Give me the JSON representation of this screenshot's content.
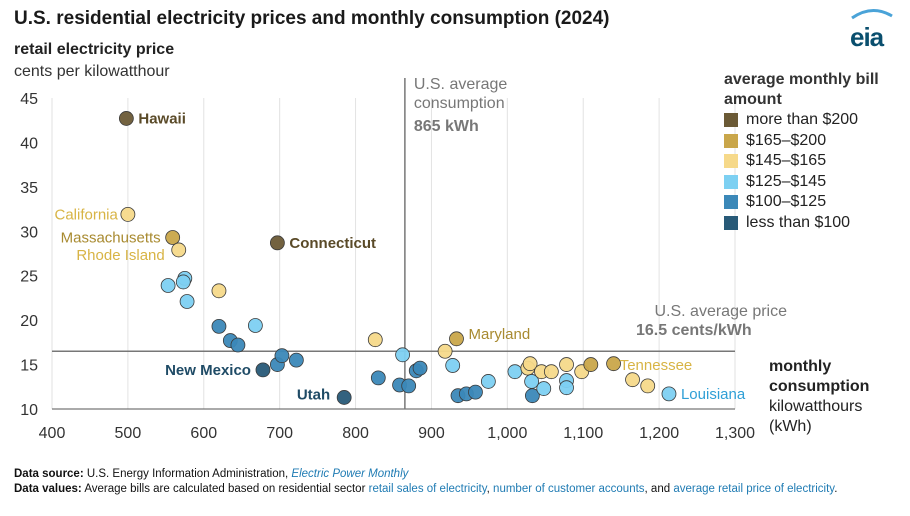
{
  "title": "U.S. residential electricity prices and monthly consumption (2024)",
  "logo": "eia",
  "y_axis_title": "retail electricity price",
  "y_axis_unit": "cents per kilowatthour",
  "x_axis_title": "monthly consumption",
  "x_axis_unit": "kilowatthours (kWh)",
  "legend": {
    "title": "average monthly bill amount",
    "items": [
      {
        "label": "more than $200",
        "color": "#6b5a36"
      },
      {
        "label": "$165–$200",
        "color": "#c9a64a"
      },
      {
        "label": "$145–$165",
        "color": "#f6d98a"
      },
      {
        "label": "$125–$145",
        "color": "#7dd0f2"
      },
      {
        "label": "$100–$125",
        "color": "#3b88b8"
      },
      {
        "label": "less than $100",
        "color": "#285a78"
      }
    ]
  },
  "annotations": {
    "avg_consumption_label": "U.S. average consumption",
    "avg_consumption_value": "865 kWh",
    "avg_price_label": "U.S. average price",
    "avg_price_value": "16.5 cents/kWh"
  },
  "footer": {
    "source_label": "Data source:",
    "source_text": "U.S. Energy Information Administration,",
    "source_link": "Electric Power Monthly",
    "values_label": "Data values:",
    "values_text_1": "Average bills are calculated based on residential sector",
    "values_link_1": "retail sales of electricity",
    "values_sep_1": ",",
    "values_link_2": "number of customer accounts",
    "values_sep_2": ", and",
    "values_link_3": "average retail price of electricity",
    "values_end": "."
  },
  "chart_data": {
    "type": "scatter",
    "xlabel": "monthly consumption kilowatthours (kWh)",
    "ylabel": "retail electricity price cents per kilowatthour",
    "xlim": [
      400,
      1300
    ],
    "ylim": [
      10,
      45
    ],
    "x_ticks": [
      "400",
      "500",
      "600",
      "700",
      "800",
      "900",
      "1,000",
      "1,100",
      "1,200",
      "1,300"
    ],
    "y_ticks": [
      "10",
      "15",
      "20",
      "25",
      "30",
      "35",
      "40",
      "45"
    ],
    "grid": "vertical",
    "reference_lines": {
      "x": 865,
      "y": 16.5
    },
    "categories": [
      "more than $200",
      "$165–$200",
      "$145–$165",
      "$125–$145",
      "$100–$125",
      "less than $100"
    ],
    "points": [
      {
        "x": 498,
        "y": 42.7,
        "cat": 0,
        "label": "Hawaii"
      },
      {
        "x": 697,
        "y": 28.7,
        "cat": 0,
        "label": "Connecticut"
      },
      {
        "x": 500,
        "y": 31.9,
        "cat": 2,
        "label": "California"
      },
      {
        "x": 559,
        "y": 29.3,
        "cat": 1,
        "label": "Massachusetts"
      },
      {
        "x": 567,
        "y": 27.9,
        "cat": 2,
        "label": "Rhode Island"
      },
      {
        "x": 575,
        "y": 24.7,
        "cat": 3
      },
      {
        "x": 573,
        "y": 24.3,
        "cat": 3
      },
      {
        "x": 553,
        "y": 23.9,
        "cat": 3
      },
      {
        "x": 578,
        "y": 22.1,
        "cat": 3
      },
      {
        "x": 620,
        "y": 23.3,
        "cat": 2
      },
      {
        "x": 620,
        "y": 19.3,
        "cat": 4
      },
      {
        "x": 635,
        "y": 17.7,
        "cat": 4
      },
      {
        "x": 645,
        "y": 17.2,
        "cat": 4
      },
      {
        "x": 668,
        "y": 19.4,
        "cat": 3
      },
      {
        "x": 678,
        "y": 14.4,
        "cat": 5,
        "label": "New Mexico"
      },
      {
        "x": 697,
        "y": 15.0,
        "cat": 4
      },
      {
        "x": 703,
        "y": 16.0,
        "cat": 4
      },
      {
        "x": 722,
        "y": 15.5,
        "cat": 4
      },
      {
        "x": 785,
        "y": 11.3,
        "cat": 5,
        "label": "Utah"
      },
      {
        "x": 826,
        "y": 17.8,
        "cat": 2
      },
      {
        "x": 830,
        "y": 13.5,
        "cat": 4
      },
      {
        "x": 858,
        "y": 12.7,
        "cat": 4
      },
      {
        "x": 870,
        "y": 12.6,
        "cat": 4
      },
      {
        "x": 862,
        "y": 16.1,
        "cat": 3
      },
      {
        "x": 880,
        "y": 14.3,
        "cat": 4
      },
      {
        "x": 885,
        "y": 14.6,
        "cat": 4
      },
      {
        "x": 918,
        "y": 16.5,
        "cat": 2
      },
      {
        "x": 928,
        "y": 14.9,
        "cat": 3
      },
      {
        "x": 933,
        "y": 17.9,
        "cat": 1,
        "label": "Maryland"
      },
      {
        "x": 935,
        "y": 11.5,
        "cat": 4
      },
      {
        "x": 946,
        "y": 11.7,
        "cat": 4
      },
      {
        "x": 958,
        "y": 11.9,
        "cat": 4
      },
      {
        "x": 975,
        "y": 13.1,
        "cat": 3
      },
      {
        "x": 1010,
        "y": 14.2,
        "cat": 3
      },
      {
        "x": 1027,
        "y": 14.6,
        "cat": 2
      },
      {
        "x": 1030,
        "y": 15.1,
        "cat": 2
      },
      {
        "x": 1032,
        "y": 13.1,
        "cat": 3
      },
      {
        "x": 1033,
        "y": 11.5,
        "cat": 4
      },
      {
        "x": 1045,
        "y": 14.2,
        "cat": 2
      },
      {
        "x": 1048,
        "y": 12.3,
        "cat": 3
      },
      {
        "x": 1058,
        "y": 14.2,
        "cat": 2
      },
      {
        "x": 1078,
        "y": 13.2,
        "cat": 3
      },
      {
        "x": 1078,
        "y": 12.4,
        "cat": 3
      },
      {
        "x": 1078,
        "y": 15.0,
        "cat": 2
      },
      {
        "x": 1098,
        "y": 14.2,
        "cat": 2
      },
      {
        "x": 1110,
        "y": 15.0,
        "cat": 1
      },
      {
        "x": 1140,
        "y": 15.1,
        "cat": 1
      },
      {
        "x": 1165,
        "y": 13.3,
        "cat": 2
      },
      {
        "x": 1185,
        "y": 12.6,
        "cat": 2,
        "label": "Tennessee"
      },
      {
        "x": 1213,
        "y": 11.7,
        "cat": 3,
        "label": "Louisiana"
      }
    ]
  }
}
